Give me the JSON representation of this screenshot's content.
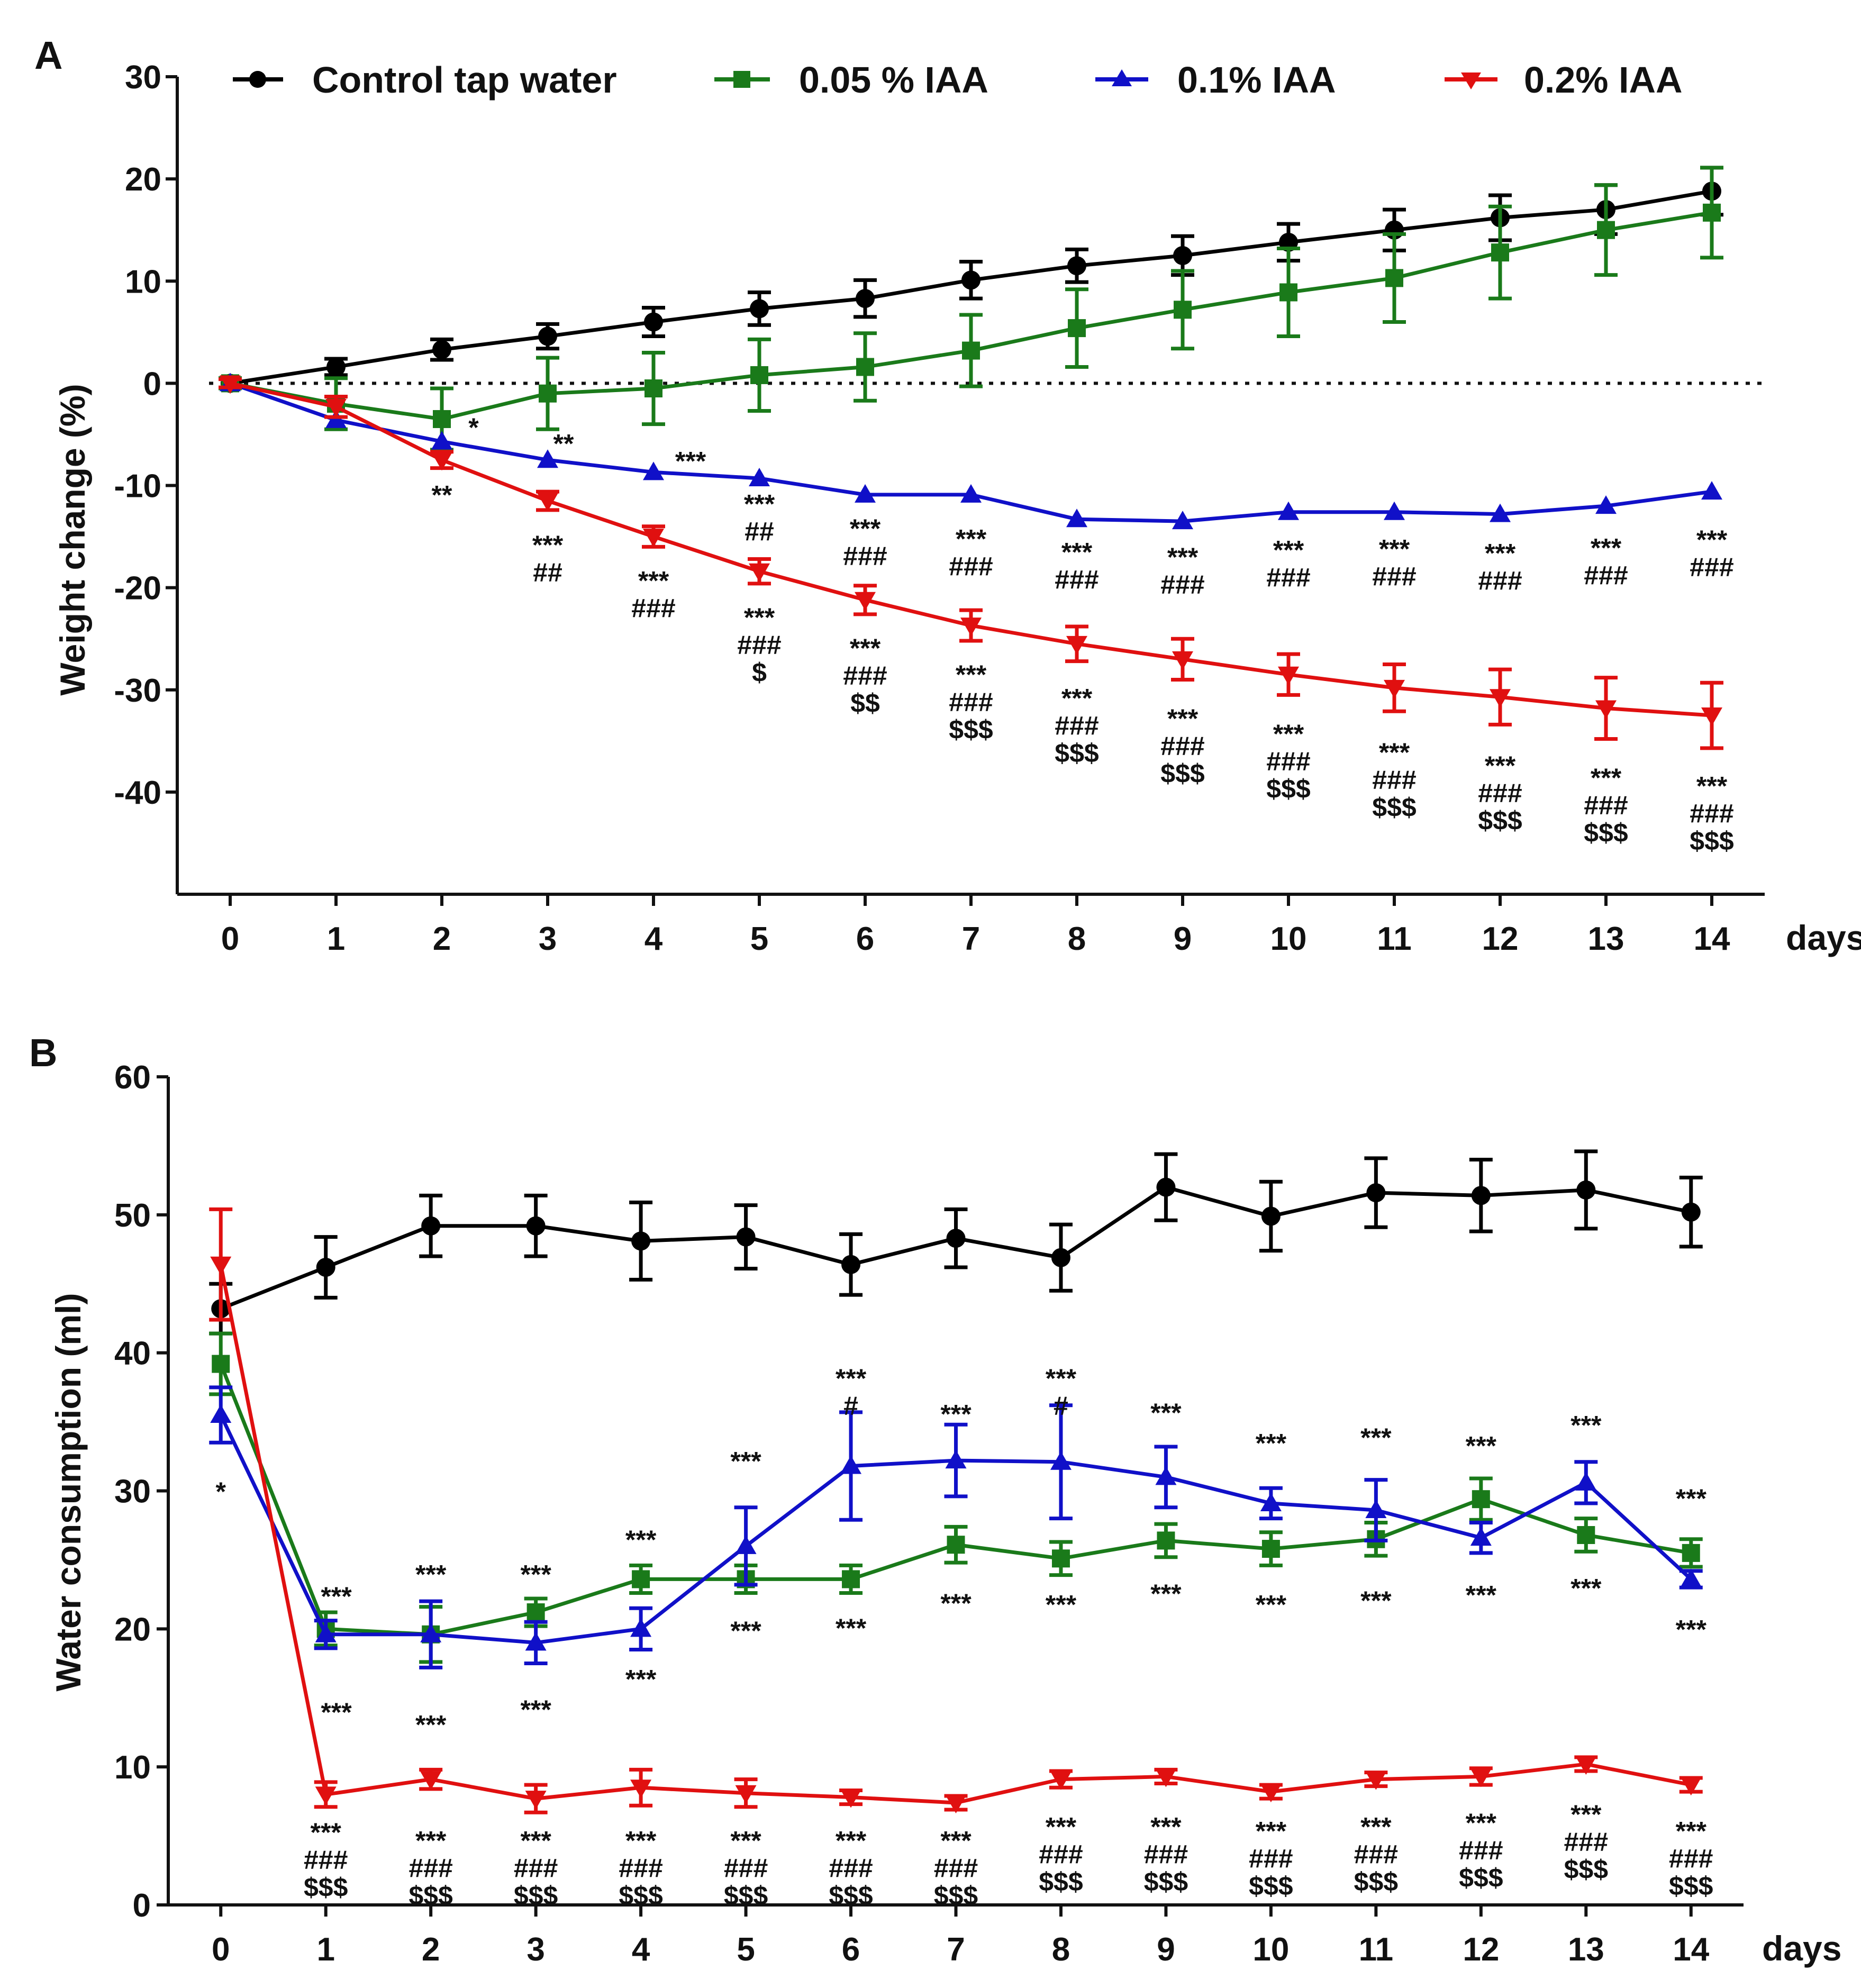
{
  "legend": [
    {
      "name": "Control tap water",
      "color": "#000000",
      "marker": "circle"
    },
    {
      "name": "0.05 % IAA",
      "color": "#1a7a1a",
      "marker": "square"
    },
    {
      "name": "0.1% IAA",
      "color": "#1010c8",
      "marker": "triangle-up"
    },
    {
      "name": "0.2% IAA",
      "color": "#e01010",
      "marker": "triangle-down"
    }
  ],
  "chart_data": [
    {
      "panel": "A",
      "type": "line",
      "xlabel": "days",
      "ylabel": "Weight change (%)",
      "x": [
        0,
        1,
        2,
        3,
        4,
        5,
        6,
        7,
        8,
        9,
        10,
        11,
        12,
        13,
        14
      ],
      "xticks": [
        "0",
        "1",
        "2",
        "3",
        "4",
        "5",
        "6",
        "7",
        "8",
        "9",
        "10",
        "11",
        "12",
        "13",
        "14"
      ],
      "xlim": [
        -0.5,
        14.5
      ],
      "ylim": [
        -50,
        30
      ],
      "yticks": [
        30,
        20,
        10,
        0,
        -10,
        -20,
        -30,
        -40
      ],
      "yticklabels": [
        "30",
        "20",
        "10",
        "0",
        "-10",
        "-20",
        "-30",
        "-40"
      ],
      "reference_line": 0,
      "series": [
        {
          "name": "Control tap water",
          "values": [
            0,
            1.6,
            3.3,
            4.6,
            6.0,
            7.3,
            8.3,
            10.1,
            11.5,
            12.5,
            13.8,
            15.0,
            16.2,
            17.0,
            18.8
          ],
          "errors": [
            0.5,
            0.8,
            1.0,
            1.2,
            1.4,
            1.6,
            1.8,
            1.8,
            1.6,
            1.9,
            1.8,
            2.0,
            2.2,
            2.4,
            2.3
          ]
        },
        {
          "name": "0.05 % IAA",
          "values": [
            0,
            -2.0,
            -3.5,
            -1.0,
            -0.5,
            0.8,
            1.6,
            3.2,
            5.4,
            7.2,
            8.9,
            10.3,
            12.8,
            15.0,
            16.7
          ],
          "errors": [
            0.5,
            2.5,
            3.0,
            3.5,
            3.5,
            3.5,
            3.3,
            3.5,
            3.8,
            3.8,
            4.3,
            4.3,
            4.5,
            4.4,
            4.4
          ]
        },
        {
          "name": "0.1% IAA",
          "values": [
            0,
            -3.6,
            -5.7,
            -7.5,
            -8.7,
            -9.3,
            -10.9,
            -10.9,
            -13.3,
            -13.5,
            -12.6,
            -12.6,
            -12.8,
            -12.0,
            -10.6
          ]
        },
        {
          "name": "0.2% IAA",
          "values": [
            0,
            -2.3,
            -7.5,
            -11.5,
            -15.0,
            -18.4,
            -21.2,
            -23.7,
            -25.5,
            -27.0,
            -28.5,
            -29.8,
            -30.7,
            -31.8,
            -32.5
          ],
          "errors": [
            0.4,
            1.0,
            0.8,
            0.9,
            1.0,
            1.2,
            1.4,
            1.5,
            1.7,
            2.0,
            2.0,
            2.3,
            2.7,
            3.0,
            3.2
          ]
        }
      ],
      "annotations": [
        {
          "x": 2.3,
          "y": -5.2,
          "lines": [
            "*"
          ]
        },
        {
          "x": 3.15,
          "y": -6.8,
          "lines": [
            "**"
          ]
        },
        {
          "x": 4.35,
          "y": -8.5,
          "lines": [
            "***"
          ]
        },
        {
          "x": 2,
          "y": -11.8,
          "lines": [
            "**"
          ]
        },
        {
          "x": 3,
          "y": -16.7,
          "lines": [
            "***",
            "##"
          ]
        },
        {
          "x": 4,
          "y": -20.2,
          "lines": [
            "***",
            "###"
          ]
        },
        {
          "x": 5,
          "y": -12.7,
          "lines": [
            "***",
            "##"
          ]
        },
        {
          "x": 5,
          "y": -23.8,
          "lines": [
            "***",
            "###",
            "$"
          ]
        },
        {
          "x": 6,
          "y": -15.1,
          "lines": [
            "***",
            "###"
          ]
        },
        {
          "x": 6,
          "y": -26.8,
          "lines": [
            "***",
            "###",
            "$$"
          ]
        },
        {
          "x": 7,
          "y": -16.1,
          "lines": [
            "***",
            "###"
          ]
        },
        {
          "x": 7,
          "y": -29.4,
          "lines": [
            "***",
            "###",
            "$$$"
          ]
        },
        {
          "x": 8,
          "y": -17.4,
          "lines": [
            "***",
            "###"
          ]
        },
        {
          "x": 8,
          "y": -31.7,
          "lines": [
            "***",
            "###",
            "$$$"
          ]
        },
        {
          "x": 9,
          "y": -17.9,
          "lines": [
            "***",
            "###"
          ]
        },
        {
          "x": 9,
          "y": -33.7,
          "lines": [
            "***",
            "###",
            "$$$"
          ]
        },
        {
          "x": 10,
          "y": -17.2,
          "lines": [
            "***",
            "###"
          ]
        },
        {
          "x": 10,
          "y": -35.2,
          "lines": [
            "***",
            "###",
            "$$$"
          ]
        },
        {
          "x": 11,
          "y": -17.1,
          "lines": [
            "***",
            "###"
          ]
        },
        {
          "x": 11,
          "y": -37.0,
          "lines": [
            "***",
            "###",
            "$$$"
          ]
        },
        {
          "x": 12,
          "y": -17.5,
          "lines": [
            "***",
            "###"
          ]
        },
        {
          "x": 12,
          "y": -38.3,
          "lines": [
            "***",
            "###",
            "$$$"
          ]
        },
        {
          "x": 13,
          "y": -17.0,
          "lines": [
            "***",
            "###"
          ]
        },
        {
          "x": 13,
          "y": -39.5,
          "lines": [
            "***",
            "###",
            "$$$"
          ]
        },
        {
          "x": 14,
          "y": -16.2,
          "lines": [
            "***",
            "###"
          ]
        },
        {
          "x": 14,
          "y": -40.3,
          "lines": [
            "***",
            "###",
            "$$$"
          ]
        }
      ]
    },
    {
      "panel": "B",
      "type": "line",
      "xlabel": "days",
      "ylabel": "Water consumption (ml)",
      "x": [
        0,
        1,
        2,
        3,
        4,
        5,
        6,
        7,
        8,
        9,
        10,
        11,
        12,
        13,
        14
      ],
      "xticks": [
        "0",
        "1",
        "2",
        "3",
        "4",
        "5",
        "6",
        "7",
        "8",
        "9",
        "10",
        "11",
        "12",
        "13",
        "14"
      ],
      "xlim": [
        -0.5,
        14.5
      ],
      "ylim": [
        0,
        60
      ],
      "yticks": [
        0,
        10,
        20,
        30,
        40,
        50,
        60
      ],
      "yticklabels": [
        "0",
        "10",
        "20",
        "30",
        "40",
        "50",
        "60"
      ],
      "series": [
        {
          "name": "Control tap water",
          "values": [
            43.2,
            46.2,
            49.2,
            49.2,
            48.1,
            48.4,
            46.4,
            48.3,
            46.9,
            52.0,
            49.9,
            51.6,
            51.4,
            51.8,
            50.2
          ],
          "errors": [
            1.8,
            2.2,
            2.2,
            2.2,
            2.8,
            2.3,
            2.2,
            2.1,
            2.4,
            2.4,
            2.5,
            2.5,
            2.6,
            2.8,
            2.5
          ]
        },
        {
          "name": "0.05 % IAA",
          "values": [
            39.2,
            20.0,
            19.6,
            21.2,
            23.6,
            23.6,
            23.6,
            26.1,
            25.1,
            26.4,
            25.8,
            26.5,
            29.4,
            26.8,
            25.5
          ],
          "errors": [
            2.2,
            1.2,
            2.0,
            1.0,
            1.0,
            1.0,
            1.0,
            1.3,
            1.2,
            1.2,
            1.2,
            1.2,
            1.5,
            1.2,
            1.0
          ]
        },
        {
          "name": "0.1% IAA",
          "values": [
            35.5,
            19.6,
            19.6,
            19.0,
            20.0,
            26.0,
            31.8,
            32.2,
            32.1,
            31.0,
            29.1,
            28.6,
            26.6,
            30.6,
            23.6
          ],
          "errors": [
            2.0,
            1.0,
            2.4,
            1.5,
            1.5,
            2.8,
            3.9,
            2.6,
            4.1,
            2.2,
            1.1,
            2.2,
            1.1,
            1.5,
            0.6
          ]
        },
        {
          "name": "0.2% IAA",
          "values": [
            46.4,
            8.0,
            9.1,
            7.7,
            8.5,
            8.1,
            7.8,
            7.4,
            9.1,
            9.3,
            8.2,
            9.1,
            9.3,
            10.2,
            8.7
          ],
          "errors": [
            4.0,
            0.9,
            0.7,
            1.0,
            1.3,
            1.0,
            0.5,
            0.5,
            0.6,
            0.5,
            0.5,
            0.5,
            0.6,
            0.5,
            0.5
          ]
        }
      ],
      "annotations": [
        {
          "x": 0,
          "y": 29.3,
          "lines": [
            "*"
          ]
        },
        {
          "x": 1.1,
          "y": 21.7,
          "lines": [
            "***"
          ]
        },
        {
          "x": 1.1,
          "y": 13.3,
          "lines": [
            "***"
          ]
        },
        {
          "x": 1,
          "y": 4.6,
          "lines": [
            "***",
            "###",
            "$$$"
          ]
        },
        {
          "x": 2,
          "y": 23.3,
          "lines": [
            "***"
          ]
        },
        {
          "x": 2,
          "y": 12.4,
          "lines": [
            "***"
          ]
        },
        {
          "x": 2,
          "y": 4.0,
          "lines": [
            "***",
            "###",
            "$$$"
          ]
        },
        {
          "x": 3,
          "y": 23.3,
          "lines": [
            "***"
          ]
        },
        {
          "x": 3,
          "y": 13.5,
          "lines": [
            "***"
          ]
        },
        {
          "x": 3,
          "y": 4.0,
          "lines": [
            "***",
            "###",
            "$$$"
          ]
        },
        {
          "x": 4,
          "y": 25.8,
          "lines": [
            "***"
          ]
        },
        {
          "x": 4,
          "y": 15.7,
          "lines": [
            "***"
          ]
        },
        {
          "x": 4,
          "y": 4.0,
          "lines": [
            "***",
            "###",
            "$$$"
          ]
        },
        {
          "x": 5,
          "y": 31.5,
          "lines": [
            "***"
          ]
        },
        {
          "x": 5,
          "y": 19.2,
          "lines": [
            "***"
          ]
        },
        {
          "x": 5,
          "y": 4.0,
          "lines": [
            "***",
            "###",
            "$$$"
          ]
        },
        {
          "x": 6,
          "y": 37.5,
          "lines": [
            "***",
            "#"
          ]
        },
        {
          "x": 6,
          "y": 19.4,
          "lines": [
            "***"
          ]
        },
        {
          "x": 6,
          "y": 4.0,
          "lines": [
            "***",
            "###",
            "$$$"
          ]
        },
        {
          "x": 7,
          "y": 34.9,
          "lines": [
            "***"
          ]
        },
        {
          "x": 7,
          "y": 21.2,
          "lines": [
            "***"
          ]
        },
        {
          "x": 7,
          "y": 4.0,
          "lines": [
            "***",
            "###",
            "$$$"
          ]
        },
        {
          "x": 8,
          "y": 37.5,
          "lines": [
            "***",
            "#"
          ]
        },
        {
          "x": 8,
          "y": 21.1,
          "lines": [
            "***"
          ]
        },
        {
          "x": 8,
          "y": 5.0,
          "lines": [
            "***",
            "###",
            "$$$"
          ]
        },
        {
          "x": 9,
          "y": 35.0,
          "lines": [
            "***"
          ]
        },
        {
          "x": 9,
          "y": 21.9,
          "lines": [
            "***"
          ]
        },
        {
          "x": 9,
          "y": 5.0,
          "lines": [
            "***",
            "###",
            "$$$"
          ]
        },
        {
          "x": 10,
          "y": 32.8,
          "lines": [
            "***"
          ]
        },
        {
          "x": 10,
          "y": 21.1,
          "lines": [
            "***"
          ]
        },
        {
          "x": 10,
          "y": 4.7,
          "lines": [
            "***",
            "###",
            "$$$"
          ]
        },
        {
          "x": 11,
          "y": 33.2,
          "lines": [
            "***"
          ]
        },
        {
          "x": 11,
          "y": 21.4,
          "lines": [
            "***"
          ]
        },
        {
          "x": 11,
          "y": 5.0,
          "lines": [
            "***",
            "###",
            "$$$"
          ]
        },
        {
          "x": 12,
          "y": 32.6,
          "lines": [
            "***"
          ]
        },
        {
          "x": 12,
          "y": 21.8,
          "lines": [
            "***"
          ]
        },
        {
          "x": 12,
          "y": 5.3,
          "lines": [
            "***",
            "###",
            "$$$"
          ]
        },
        {
          "x": 13,
          "y": 34.1,
          "lines": [
            "***"
          ]
        },
        {
          "x": 13,
          "y": 22.3,
          "lines": [
            "***"
          ]
        },
        {
          "x": 13,
          "y": 5.9,
          "lines": [
            "***",
            "###",
            "$$$"
          ]
        },
        {
          "x": 14,
          "y": 28.8,
          "lines": [
            "***"
          ]
        },
        {
          "x": 14,
          "y": 19.3,
          "lines": [
            "***"
          ]
        },
        {
          "x": 14,
          "y": 4.7,
          "lines": [
            "***",
            "###",
            "$$$"
          ]
        }
      ]
    }
  ]
}
